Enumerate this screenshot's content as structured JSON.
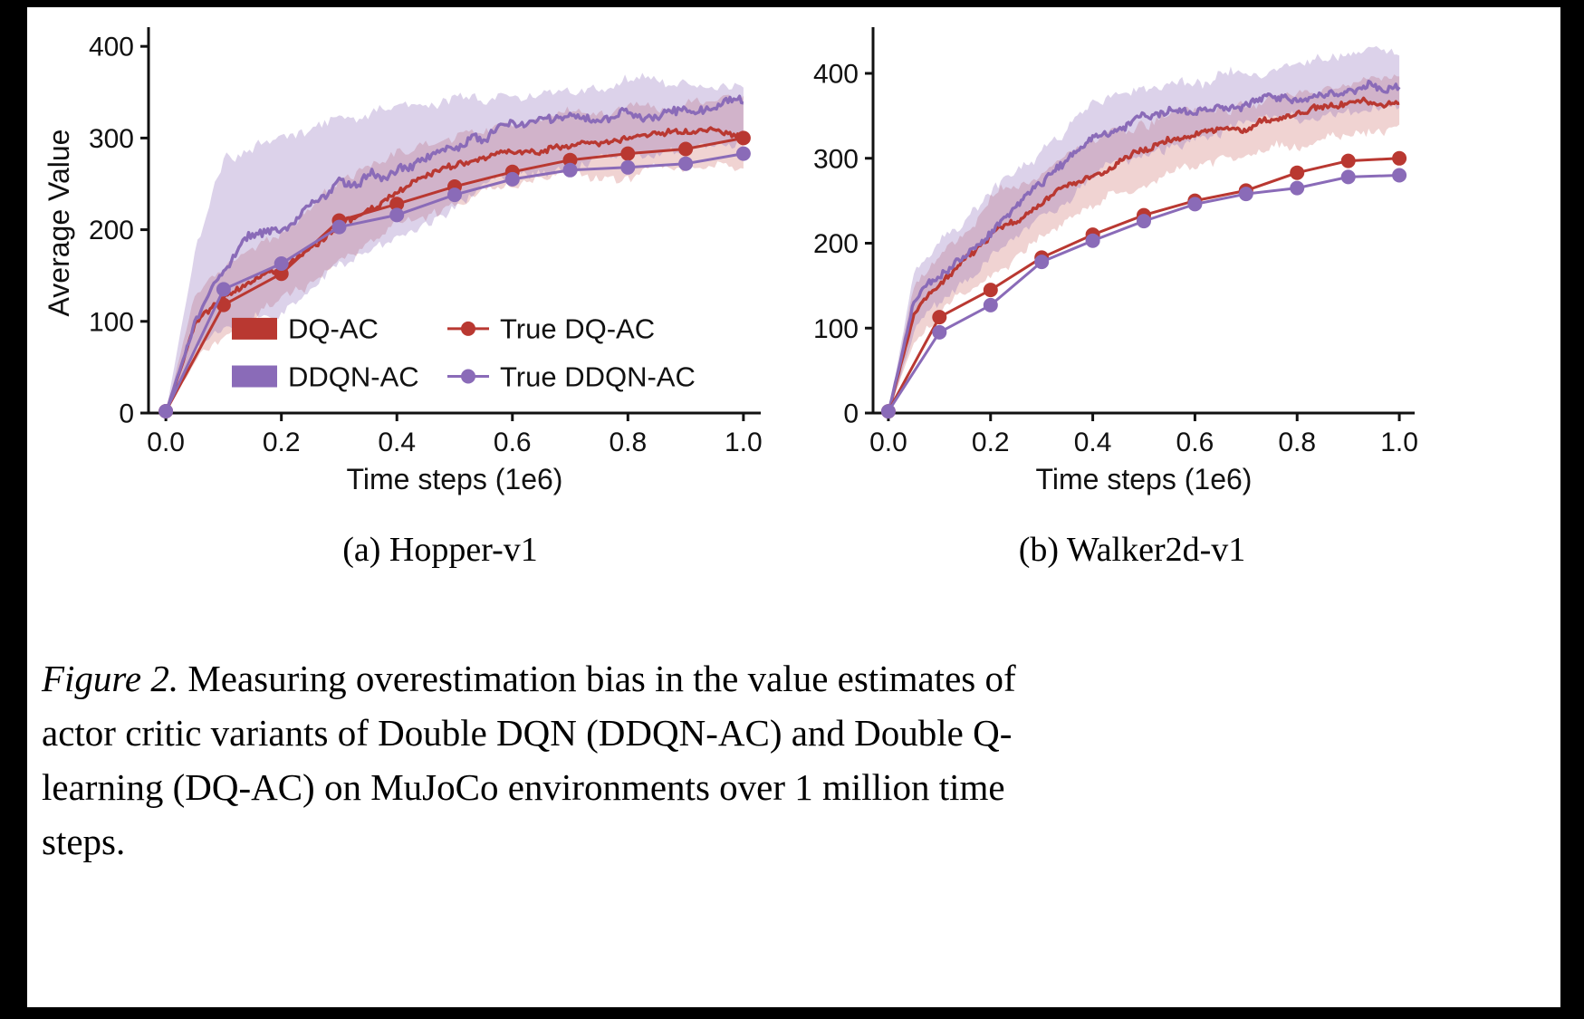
{
  "colors": {
    "red": "#b93831",
    "purple": "#8a6bb8",
    "red_band": "rgba(185,56,49,0.22)",
    "purple_band": "rgba(138,107,184,0.30)",
    "axis": "#111111",
    "text": "#111111"
  },
  "legend": {
    "items": [
      {
        "label": "DQ-AC",
        "type": "band",
        "color_key": "red"
      },
      {
        "label": "DDQN-AC",
        "type": "band",
        "color_key": "purple"
      },
      {
        "label": "True DQ-AC",
        "type": "marker",
        "color_key": "red"
      },
      {
        "label": "True DDQN-AC",
        "type": "marker",
        "color_key": "purple"
      }
    ]
  },
  "chart_data": [
    {
      "type": "line",
      "caption": "(a) Hopper-v1",
      "xlabel": "Time steps (1e6)",
      "ylabel": "Average Value",
      "xlim": [
        -0.03,
        1.03
      ],
      "ylim": [
        0,
        415
      ],
      "xtick_vals": [
        0,
        0.2,
        0.4,
        0.6,
        0.8,
        1.0
      ],
      "xtick_labels": [
        "0.0",
        "0.2",
        "0.4",
        "0.6",
        "0.8",
        "1.0"
      ],
      "ytick_vals": [
        0,
        100,
        200,
        300,
        400
      ],
      "ytick_labels": [
        "0",
        "100",
        "200",
        "300",
        "400"
      ],
      "x_anchors": [
        0,
        0.05,
        0.1,
        0.15,
        0.2,
        0.25,
        0.3,
        0.35,
        0.4,
        0.45,
        0.5,
        0.55,
        0.6,
        0.65,
        0.7,
        0.75,
        0.8,
        0.85,
        0.9,
        0.95,
        1.0
      ],
      "x_markers": [
        0,
        0.1,
        0.2,
        0.3,
        0.4,
        0.5,
        0.6,
        0.7,
        0.8,
        0.9,
        1.0
      ],
      "show_legend": true,
      "series": [
        {
          "name": "DQ-AC",
          "type": "band_line",
          "color_key": "red",
          "noise": 5,
          "band_noise": 8,
          "trend": [
            0,
            95,
            122,
            140,
            158,
            182,
            205,
            222,
            242,
            255,
            265,
            275,
            285,
            290,
            294,
            298,
            300,
            303,
            305,
            308,
            305
          ],
          "band_lo": [
            0,
            62,
            88,
            102,
            118,
            140,
            162,
            182,
            200,
            214,
            225,
            235,
            245,
            250,
            255,
            259,
            262,
            265,
            267,
            270,
            268
          ],
          "band_hi": [
            0,
            128,
            160,
            182,
            202,
            226,
            248,
            266,
            282,
            294,
            304,
            311,
            317,
            322,
            326,
            330,
            332,
            334,
            336,
            340,
            338
          ]
        },
        {
          "name": "DDQN-AC",
          "type": "band_line",
          "color_key": "purple",
          "noise": 7,
          "band_noise": 9,
          "trend": [
            0,
            100,
            158,
            190,
            200,
            232,
            252,
            262,
            268,
            278,
            288,
            300,
            312,
            316,
            318,
            321,
            324,
            327,
            329,
            331,
            332
          ],
          "band_lo": [
            0,
            60,
            92,
            104,
            112,
            132,
            160,
            180,
            194,
            206,
            224,
            244,
            260,
            268,
            274,
            279,
            284,
            288,
            291,
            294,
            296
          ],
          "band_hi": [
            0,
            175,
            278,
            292,
            300,
            310,
            318,
            328,
            334,
            339,
            344,
            347,
            350,
            352,
            354,
            356,
            356,
            357,
            358,
            359,
            360
          ]
        },
        {
          "name": "True DQ-AC",
          "type": "marker_line",
          "color_key": "red",
          "values": [
            2,
            118,
            152,
            210,
            228,
            247,
            263,
            276,
            283,
            288,
            300
          ]
        },
        {
          "name": "True DDQN-AC",
          "type": "marker_line",
          "color_key": "purple",
          "values": [
            2,
            135,
            163,
            203,
            216,
            238,
            255,
            265,
            268,
            272,
            283
          ]
        }
      ]
    },
    {
      "type": "line",
      "caption": "(b) Walker2d-v1",
      "xlabel": "Time steps (1e6)",
      "ylabel": "",
      "xlim": [
        -0.03,
        1.03
      ],
      "ylim": [
        0,
        448
      ],
      "xtick_vals": [
        0,
        0.2,
        0.4,
        0.6,
        0.8,
        1.0
      ],
      "xtick_labels": [
        "0.0",
        "0.2",
        "0.4",
        "0.6",
        "0.8",
        "1.0"
      ],
      "ytick_vals": [
        0,
        100,
        200,
        300,
        400
      ],
      "ytick_labels": [
        "0",
        "100",
        "200",
        "300",
        "400"
      ],
      "x_anchors": [
        0,
        0.05,
        0.1,
        0.15,
        0.2,
        0.25,
        0.3,
        0.35,
        0.4,
        0.45,
        0.5,
        0.55,
        0.6,
        0.65,
        0.7,
        0.75,
        0.8,
        0.85,
        0.9,
        0.95,
        1.0
      ],
      "x_markers": [
        0,
        0.1,
        0.2,
        0.3,
        0.4,
        0.5,
        0.6,
        0.7,
        0.8,
        0.9,
        1.0
      ],
      "show_legend": false,
      "series": [
        {
          "name": "DQ-AC",
          "type": "band_line",
          "color_key": "red",
          "noise": 5,
          "band_noise": 8,
          "trend": [
            0,
            118,
            148,
            175,
            208,
            228,
            248,
            268,
            285,
            298,
            310,
            320,
            330,
            336,
            341,
            348,
            352,
            357,
            361,
            365,
            368
          ],
          "band_lo": [
            0,
            85,
            115,
            142,
            170,
            190,
            210,
            230,
            246,
            260,
            272,
            282,
            292,
            299,
            305,
            312,
            318,
            324,
            329,
            334,
            337
          ],
          "band_hi": [
            0,
            150,
            182,
            208,
            243,
            263,
            283,
            303,
            318,
            330,
            340,
            348,
            356,
            362,
            368,
            374,
            378,
            384,
            388,
            392,
            395
          ]
        },
        {
          "name": "DDQN-AC",
          "type": "band_line",
          "color_key": "purple",
          "noise": 7,
          "band_noise": 9,
          "trend": [
            0,
            128,
            162,
            188,
            213,
            243,
            273,
            298,
            318,
            333,
            344,
            351,
            357,
            361,
            365,
            369,
            372,
            374,
            377,
            379,
            381
          ],
          "band_lo": [
            0,
            95,
            128,
            152,
            178,
            203,
            233,
            258,
            278,
            293,
            306,
            316,
            324,
            330,
            336,
            342,
            346,
            350,
            354,
            356,
            358
          ],
          "band_hi": [
            0,
            162,
            198,
            226,
            252,
            282,
            312,
            338,
            356,
            370,
            380,
            388,
            394,
            400,
            406,
            410,
            413,
            416,
            418,
            420,
            421
          ]
        },
        {
          "name": "True DQ-AC",
          "type": "marker_line",
          "color_key": "red",
          "values": [
            2,
            113,
            145,
            183,
            210,
            233,
            250,
            262,
            283,
            297,
            300
          ]
        },
        {
          "name": "True DDQN-AC",
          "type": "marker_line",
          "color_key": "purple",
          "values": [
            2,
            95,
            127,
            178,
            203,
            226,
            246,
            258,
            265,
            278,
            280
          ]
        }
      ]
    }
  ],
  "caption": {
    "prefix": "Figure 2.",
    "lines": [
      " Measuring overestimation bias in the value estimates of",
      "actor critic variants of Double DQN (DDQN-AC) and Double Q-",
      "learning (DQ-AC) on MuJoCo environments over 1 million time",
      "steps."
    ]
  }
}
